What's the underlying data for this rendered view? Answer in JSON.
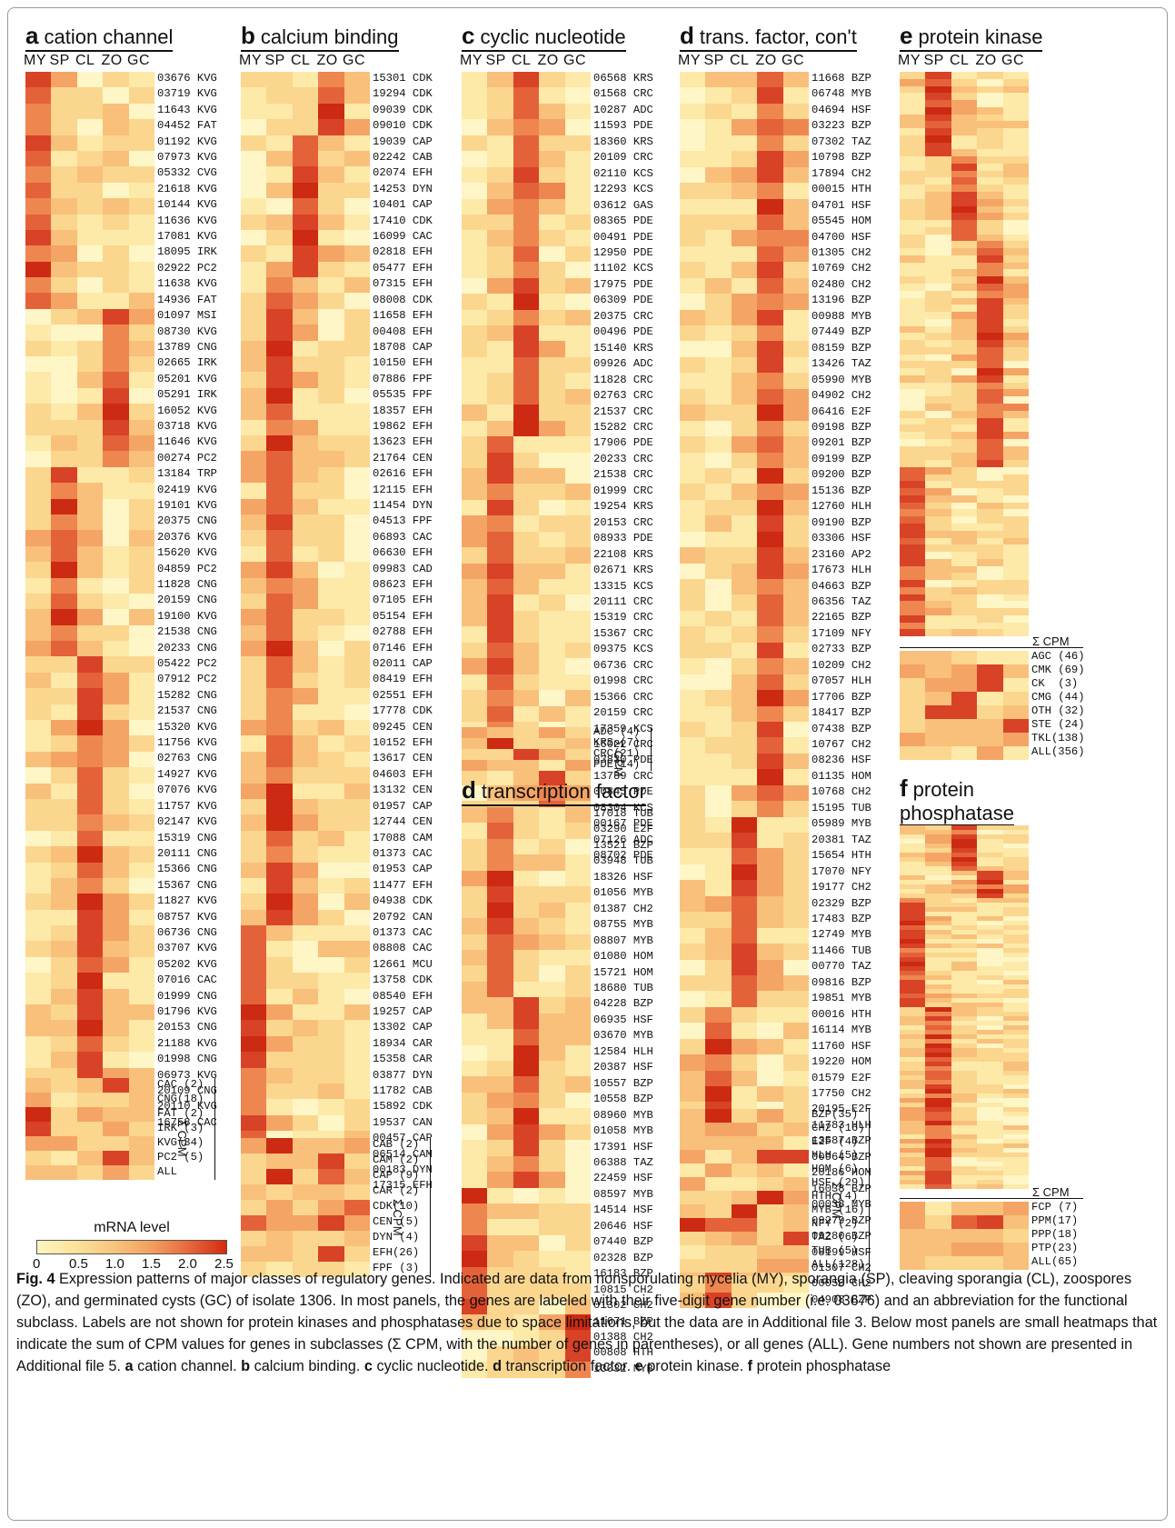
{
  "panels": [
    {
      "id": "a",
      "letter": "a",
      "title": "cation channel",
      "cols": [
        "MY",
        "SP",
        "CL",
        "ZO",
        "GC"
      ],
      "genes": [
        "03676 KVG",
        "03719 KVG",
        "11643 KVG",
        "04452 FAT",
        "01192 KVG",
        "07973 KVG",
        "05332 CVG",
        "21618 KVG",
        "10144 KVG",
        "11636 KVG",
        "17081 KVG",
        "18095 IRK",
        "02922 PC2",
        "11638 KVG",
        "14936 FAT",
        "01097 MSI",
        "08730 KVG",
        "13789 CNG",
        "02665 IRK",
        "05201 KVG",
        "05291 IRK",
        "16052 KVG",
        "03718 KVG",
        "11646 KVG",
        "00274 PC2",
        "13184 TRP",
        "02419 KVG",
        "19101 KVG",
        "20375 CNG",
        "20376 KVG",
        "15620 KVG",
        "04859 PC2",
        "11828 CNG",
        "20159 CNG",
        "19100 KVG",
        "21538 CNG",
        "20233 CNG",
        "05422 PC2",
        "07912 PC2",
        "15282 CNG",
        "21537 CNG",
        "15320 KVG",
        "11756 KVG",
        "02763 CNG",
        "14927 KVG",
        "07076 KVG",
        "11757 KVG",
        "02147 KVG",
        "15319 CNG",
        "20111 CNG",
        "15366 CNG",
        "15367 CNG",
        "11827 KVG",
        "08757 KVG",
        "06736 CNG",
        "03707 KVG",
        "05202 KVG",
        "07016 CAC",
        "01999 CNG",
        "01796 KVG",
        "20153 CNG",
        "21188 KVG",
        "01998 CNG",
        "06973 KVG",
        "20109 CNG",
        "20110 KVG",
        "16758 CAC"
      ],
      "sum_label": "Σ CPM",
      "sum": [
        "CAC (2)",
        "CNG(18)",
        "FAT (2)",
        "IRK (3)",
        "KVG(34)",
        "PC2 (5)",
        "ALL"
      ]
    },
    {
      "id": "b",
      "letter": "b",
      "title": "calcium binding",
      "cols": [
        "MY",
        "SP",
        "CL",
        "ZO",
        "GC"
      ],
      "genes": [
        "15301 CDK",
        "19294 CDK",
        "09039 CDK",
        "09010 CDK",
        "19039 CAP",
        "02242 CAB",
        "02074 EFH",
        "14253 DYN",
        "10401 CAP",
        "17410 CDK",
        "16099 CAC",
        "02818 EFH",
        "05477 EFH",
        "07315 EFH",
        "08008 CDK",
        "11658 EFH",
        "00408 EFH",
        "18708 CAP",
        "10150 EFH",
        "07886 FPF",
        "05535 FPF",
        "18357 EFH",
        "19862 EFH",
        "13623 EFH",
        "21764 CEN",
        "02616 EFH",
        "12115 EFH",
        "11454 DYN",
        "04513 FPF",
        "06893 CAC",
        "06630 EFH",
        "09983 CAD",
        "08623 EFH",
        "07105 EFH",
        "05154 EFH",
        "02788 EFH",
        "07146 EFH",
        "02011 CAP",
        "08419 EFH",
        "02551 EFH",
        "17778 CDK",
        "09245 CEN",
        "10152 EFH",
        "13617 CEN",
        "04603 EFH",
        "13132 CEN",
        "01957 CAP",
        "12744 CEN",
        "17088 CAM",
        "01373 CAC",
        "01953 CAP",
        "11477 EFH",
        "04938 CDK",
        "20792 CAN",
        "01373 CAC",
        "08808 CAC",
        "12661 MCU",
        "13758 CDK",
        "08540 EFH",
        "19257 CAP",
        "13302 CAP",
        "18934 CAR",
        "15358 CAR",
        "03877 DYN",
        "11782 CAB",
        "15892 CDK",
        "19537 CAN",
        "00457 CAP",
        "06514 CAM",
        "00183 DYN",
        "17315 EFH"
      ],
      "sum_label": "Σ CPM",
      "sum": [
        "CAB (2)",
        "CAM (2)",
        "CAP (9)",
        "CAR (2)",
        "CDK(10)",
        "CEN (5)",
        "DYN (4)",
        "EFH(26)",
        "FPF (3)"
      ]
    },
    {
      "id": "c",
      "letter": "c",
      "title": "cyclic nucleotide",
      "cols": [
        "MY",
        "SP",
        "CL",
        "ZO",
        "GC"
      ],
      "genes": [
        "06568 KRS",
        "01568 CRC",
        "10287 ADC",
        "11593 PDE",
        "18360 KRS",
        "20109 CRC",
        "02110 KCS",
        "12293 KCS",
        "03612 GAS",
        "08365 PDE",
        "00491 PDE",
        "12950 PDE",
        "11102 KCS",
        "17975 PDE",
        "06309 PDE",
        "20375 CRC",
        "00496 PDE",
        "15140 KRS",
        "09926 ADC",
        "11828 CRC",
        "02763 CRC",
        "21537 CRC",
        "15282 CRC",
        "17906 PDE",
        "20233 CRC",
        "21538 CRC",
        "01999 CRC",
        "19254 KRS",
        "20153 CRC",
        "08933 PDE",
        "22108 KRS",
        "02671 KRS",
        "13315 KCS",
        "20111 CRC",
        "15319 CRC",
        "15367 CRC",
        "09375 KCS",
        "06736 CRC",
        "01998 CRC",
        "15366 CRC",
        "20159 CRC",
        "17359 KCS",
        "16022 CRC",
        "03830 PDE",
        "13789 CRC",
        "00845 PDE",
        "08304 KCS",
        "00167 PDE",
        "07126 ADC",
        "08702 PDE"
      ],
      "sum_label": "Σ CPM",
      "sum": [
        "ADC (4)",
        "KRS (7)",
        "CRC(21)",
        "PDE(14)"
      ]
    },
    {
      "id": "d1",
      "letter": "d",
      "title": "transcription factor",
      "cols": [],
      "genes": [
        "17018 TUB",
        "03290 E2F",
        "13521 BZP",
        "03948 TUB",
        "18326 HSF",
        "01056 MYB",
        "01387 CH2",
        "08755 MYB",
        "08807 MYB",
        "01080 HOM",
        "15721 HOM",
        "18680 TUB",
        "04228 BZP",
        "06935 HSF",
        "03670 MYB",
        "12584 HLH",
        "20387 HSF",
        "10557 BZP",
        "10558 BZP",
        "08960 MYB",
        "01058 MYB",
        "17391 HSF",
        "06388 TAZ",
        "22459 HSF",
        "08597 MYB",
        "14514 HSF",
        "20646 HSF",
        "07440 BZP",
        "02328 BZP",
        "16183 BZP",
        "10815 CH2",
        "01302 CH2",
        "11671 BZP",
        "01388 CH2",
        "00808 HTH",
        "13032 MYB"
      ],
      "sum_label": "",
      "sum": []
    },
    {
      "id": "d2",
      "letter": "d",
      "title": "trans. factor, con't",
      "cols": [
        "MY",
        "SP",
        "CL",
        "ZO",
        "GC"
      ],
      "genes": [
        "11668 BZP",
        "06748 MYB",
        "04694 HSF",
        "03223 BZP",
        "07302 TAZ",
        "10798 BZP",
        "17894 CH2",
        "00015 HTH",
        "04701 HSF",
        "05545 HOM",
        "04700 HSF",
        "01305 CH2",
        "10769 CH2",
        "02480 CH2",
        "13196 BZP",
        "00988 MYB",
        "07449 BZP",
        "08159 BZP",
        "13426 TAZ",
        "05990 MYB",
        "04902 CH2",
        "06416 E2F",
        "09198 BZP",
        "09201 BZP",
        "09199 BZP",
        "09200 BZP",
        "15136 BZP",
        "12760 HLH",
        "09190 BZP",
        "03306 HSF",
        "23160 AP2",
        "17673 HLH",
        "04663 BZP",
        "06356 TAZ",
        "22165 BZP",
        "17109 NFY",
        "02733 BZP",
        "10209 CH2",
        "07057 HLH",
        "17706 BZP",
        "18417 BZP",
        "07438 BZP",
        "10767 CH2",
        "08236 HSF",
        "01135 HOM",
        "10768 CH2",
        "15195 TUB",
        "05989 MYB",
        "20381 TAZ",
        "15654 HTH",
        "17070 NFY",
        "19177 CH2",
        "02329 BZP",
        "17483 BZP",
        "12749 MYB",
        "11466 TUB",
        "00770 TAZ",
        "09816 BZP",
        "19851 MYB",
        "00016 HTH",
        "16114 MYB",
        "11760 HSF",
        "19220 HOM",
        "01579 E2F",
        "17750 CH2",
        "20195 E2F",
        "11783 HLH",
        "13587 BZP",
        "00964 BZP",
        "20186 HOM",
        "16038 BZP",
        "00038 MYB",
        "09279 BZP",
        "09280 BZP",
        "08199 HSF",
        "01307 CH2",
        "00050 CH2",
        "04908 BZP"
      ],
      "sum_label": "Σ CPM",
      "sum": [
        "BZP(35)",
        "CH2 (16)",
        "E2F (4)",
        "HLH (5)",
        "HOM (6)",
        "HSF (29)",
        "HTH (4)",
        "MYB (16)",
        "NFY (2)",
        "TAZ (6)",
        "TUB (5)",
        "ALL(128)"
      ]
    },
    {
      "id": "e",
      "letter": "e",
      "title": "protein kinase",
      "cols": [
        "MY",
        "SP",
        "CL",
        "ZO",
        "GC"
      ],
      "genes": [],
      "sum_label": "Σ CPM",
      "sum": [
        "AGC (46)",
        "CMK (69)",
        "CK  (3)",
        "CMG (44)",
        "OTH (32)",
        "STE (24)",
        "TKL(138)",
        "ALL(356)"
      ]
    },
    {
      "id": "f",
      "letter": "f",
      "title": "protein",
      "title2": "phosphatase",
      "cols": [],
      "genes": [],
      "sum_label": "Σ CPM",
      "sum": [
        "FCP (7)",
        "PPM(17)",
        "PPP(18)",
        "PTP(23)",
        "ALL(65)"
      ]
    }
  ],
  "legend": {
    "title": "mRNA level",
    "ticks": [
      "0",
      "0.5",
      "1.0",
      "1.5",
      "2.0",
      "2.5"
    ],
    "colors": [
      "#fdf5c0",
      "#fbe39a",
      "#f8c57c",
      "#f2a060",
      "#e8683c",
      "#d42a10"
    ]
  },
  "caption": {
    "fig": "Fig. 4",
    "text": " Expression patterns of major classes of regulatory genes. Indicated are data from nonsporulating mycelia (MY), sporangia (SP), cleaving sporangia (CL), zoospores (ZO), and germinated cysts (GC) of isolate 1306. In most panels, the genes are labeled with their five-digit gene number (i.e. 03676) and an abbreviation for the functional subclass. Labels are not shown for protein kinases and phosphatases due to space limitations, but the data are in Additional file 3. Below most panels are small heatmaps that indicate the sum of CPM values for genes in subclasses (Σ CPM, with the number of genes in parentheses), or all genes (ALL). Gene numbers not shown are presented in Additional file 5. ",
    "parts": [
      [
        "a",
        " cation channel. "
      ],
      [
        "b",
        " calcium binding. "
      ],
      [
        "c",
        " cyclic nucleotide. "
      ],
      [
        "d",
        " transcription factor. "
      ],
      [
        "e",
        " protein kinase. "
      ],
      [
        "f",
        " protein phosphatase"
      ]
    ]
  }
}
